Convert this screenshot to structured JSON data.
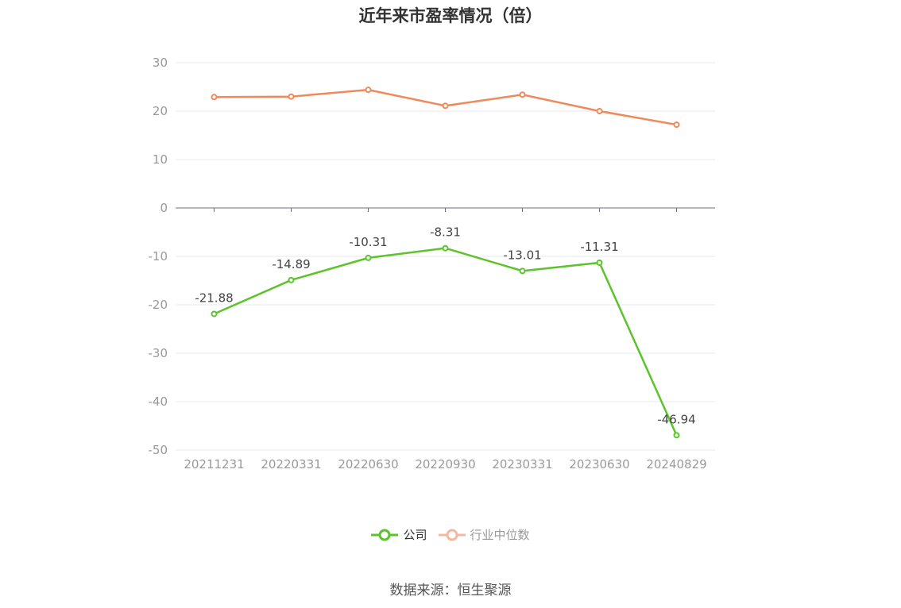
{
  "title": "近年来市盈率情况（倍）",
  "source": "数据来源：恒生聚源",
  "legend": [
    {
      "name": "公司",
      "color": "#5bc42a"
    },
    {
      "name": "行业中位数",
      "color": "#f4a58a"
    }
  ],
  "chart_data": {
    "type": "line",
    "categories": [
      "20211231",
      "20220331",
      "20220630",
      "20220930",
      "20230331",
      "20230630",
      "20240829"
    ],
    "ylim": [
      -50,
      30
    ],
    "yticks": [
      30,
      20,
      10,
      0,
      -10,
      -20,
      -30,
      -40,
      -50
    ],
    "grid": true,
    "legend_position": "bottom-center",
    "series": [
      {
        "name": "公司",
        "color": "#5bc42a",
        "values": [
          -21.88,
          -14.89,
          -10.31,
          -8.31,
          -13.01,
          -11.31,
          -46.94
        ],
        "labels": [
          "-21.88",
          "-14.89",
          "-10.31",
          "-8.31",
          "-13.01",
          "-11.31",
          "-46.94"
        ]
      },
      {
        "name": "行业中位数",
        "color": "#f0895a",
        "values": [
          22.9,
          23.0,
          24.4,
          21.1,
          23.4,
          20.0,
          17.2
        ]
      }
    ]
  }
}
